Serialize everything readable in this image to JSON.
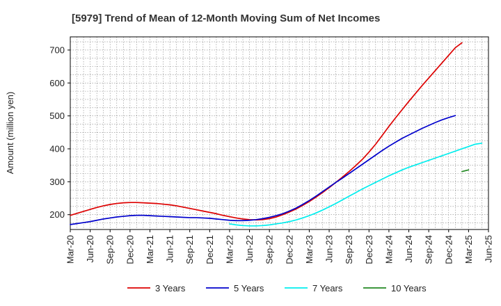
{
  "chart_data": {
    "type": "line",
    "title": "[5979]  Trend of Mean of 12-Month Moving Sum of Net Incomes",
    "xlabel": "",
    "ylabel": "Amount (million yen)",
    "ylim": [
      155,
      740
    ],
    "y_ticks": [
      200,
      300,
      400,
      500,
      600,
      700
    ],
    "x_ticks": [
      "Mar-20",
      "Jun-20",
      "Sep-20",
      "Dec-20",
      "Mar-21",
      "Jun-21",
      "Sep-21",
      "Dec-21",
      "Mar-22",
      "Jun-22",
      "Sep-22",
      "Dec-22",
      "Mar-23",
      "Jun-23",
      "Sep-23",
      "Dec-23",
      "Mar-24",
      "Jun-24",
      "Sep-24",
      "Dec-24",
      "Mar-25",
      "Jun-25"
    ],
    "grid": true,
    "legend_position": "bottom",
    "series": [
      {
        "name": "3 Years",
        "color": "#dd0000",
        "start": "Mar-20",
        "values": [
          198,
          204,
          210,
          216,
          222,
          227,
          231,
          234,
          236,
          237,
          237,
          236,
          235,
          234,
          232,
          230,
          227,
          223,
          219,
          215,
          211,
          207,
          203,
          198,
          194,
          190,
          187,
          185,
          184,
          185,
          188,
          193,
          200,
          208,
          217,
          228,
          240,
          253,
          267,
          282,
          298,
          314,
          331,
          349,
          368,
          390,
          414,
          441,
          468,
          494,
          519,
          544,
          568,
          592,
          615,
          638,
          661,
          684,
          707,
          722
        ]
      },
      {
        "name": "5 Years",
        "color": "#0000cc",
        "start": "Mar-20",
        "values": [
          170,
          173,
          176,
          179,
          183,
          187,
          190,
          193,
          195,
          197,
          198,
          198,
          197,
          196,
          195,
          194,
          193,
          192,
          191,
          191,
          190,
          189,
          187,
          185,
          183,
          182,
          182,
          183,
          185,
          188,
          192,
          197,
          203,
          211,
          220,
          231,
          243,
          256,
          270,
          284,
          298,
          311,
          325,
          339,
          353,
          367,
          381,
          395,
          408,
          420,
          432,
          442,
          452,
          462,
          471,
          480,
          488,
          495,
          501
        ]
      },
      {
        "name": "7 Years",
        "color": "#00eeee",
        "start": "Mar-22",
        "values": [
          172,
          169,
          167,
          166,
          166,
          167,
          169,
          172,
          175,
          179,
          184,
          190,
          197,
          205,
          214,
          224,
          234,
          245,
          256,
          267,
          278,
          288,
          298,
          308,
          318,
          327,
          336,
          344,
          351,
          358,
          365,
          372,
          379,
          386,
          393,
          400,
          407,
          414,
          417
        ]
      },
      {
        "name": "10 Years",
        "color": "#228822",
        "start": "Feb-25",
        "values": [
          331,
          336
        ]
      }
    ]
  }
}
